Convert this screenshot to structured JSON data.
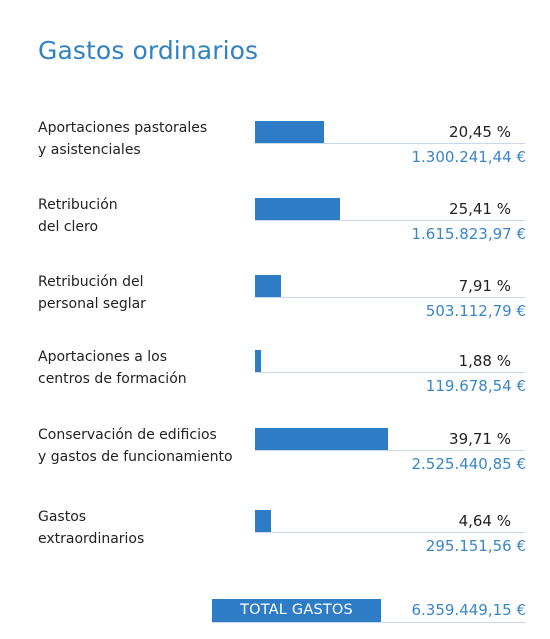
{
  "chart_data": {
    "type": "bar",
    "title": "Gastos ordinarios",
    "categories": [
      "Aportaciones pastorales\ny asistenciales",
      "Retribución\ndel clero",
      "Retribución del\npersonal seglar",
      "Aportaciones a los\ncentros de formación",
      "Conservación de edificios\ny gastos de funcionamiento",
      "Gastos\nextraordinarios"
    ],
    "values": [
      20.45,
      25.41,
      7.91,
      1.88,
      39.71,
      4.64
    ],
    "percent_labels": [
      "20,45 %",
      "25,41 %",
      "7,91 %",
      "1,88 %",
      "39,71 %",
      "4,64 %"
    ],
    "amount_labels": [
      "1.300.241,44 €",
      "1.615.823,97 €",
      "503.112,79 €",
      "119.678,54 €",
      "2.525.440,85 €",
      "295.151,56 €"
    ],
    "xlim": [
      0,
      100
    ],
    "grid": false,
    "total": {
      "label": "TOTAL GASTOS",
      "value": "6.359.449,15 €"
    },
    "colors": {
      "accent": "#2e7bc6",
      "amount": "#3b86c8",
      "rule": "#c7d9ea"
    }
  }
}
